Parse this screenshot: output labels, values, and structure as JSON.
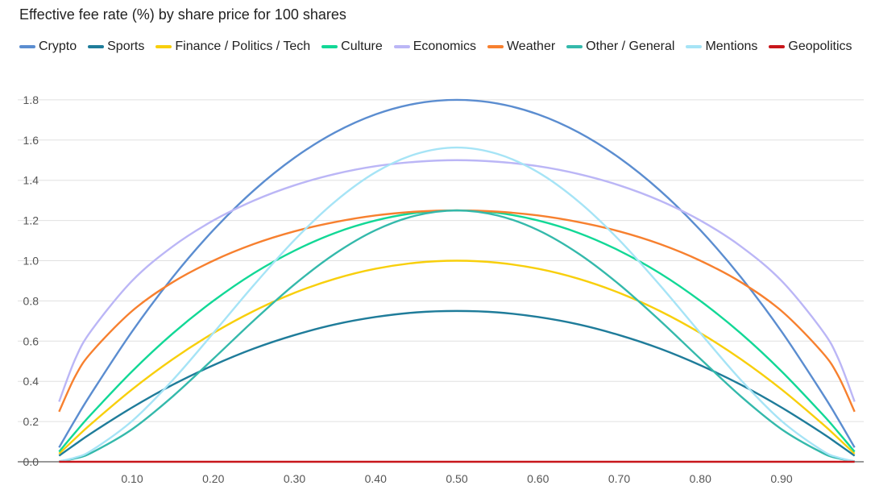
{
  "chart_data": {
    "type": "line",
    "title": "Effective fee rate (%) by share price for 100 shares",
    "xlabel": "",
    "ylabel": "",
    "xlim": [
      0.01,
      0.99
    ],
    "ylim": [
      0,
      1.8
    ],
    "grid": true,
    "legend_placement": "top",
    "x_ticks": [
      "0.10",
      "0.20",
      "0.30",
      "0.40",
      "0.50",
      "0.60",
      "0.70",
      "0.80",
      "0.90"
    ],
    "y_ticks": [
      "0.0",
      "0.2",
      "0.4",
      "0.6",
      "0.8",
      "1.0",
      "1.2",
      "1.4",
      "1.6",
      "1.8"
    ],
    "x": [
      0.01,
      0.03,
      0.05,
      0.1,
      0.15,
      0.2,
      0.25,
      0.3,
      0.35,
      0.4,
      0.45,
      0.5,
      0.55,
      0.6,
      0.65,
      0.7,
      0.75,
      0.8,
      0.85,
      0.9,
      0.95,
      0.97,
      0.99
    ],
    "series": [
      {
        "name": "Crypto",
        "color": "#5b8dd0",
        "values": [
          0.071,
          0.21,
          0.342,
          0.648,
          0.918,
          1.152,
          1.35,
          1.512,
          1.638,
          1.728,
          1.782,
          1.8,
          1.782,
          1.728,
          1.638,
          1.512,
          1.35,
          1.152,
          0.918,
          0.648,
          0.342,
          0.21,
          0.071
        ]
      },
      {
        "name": "Sports",
        "color": "#1f7c9a",
        "values": [
          0.03,
          0.087,
          0.143,
          0.27,
          0.383,
          0.48,
          0.563,
          0.63,
          0.683,
          0.72,
          0.743,
          0.75,
          0.743,
          0.72,
          0.683,
          0.63,
          0.563,
          0.48,
          0.383,
          0.27,
          0.143,
          0.087,
          0.03
        ]
      },
      {
        "name": "Finance / Politics / Tech",
        "color": "#f8cf0c",
        "values": [
          0.04,
          0.116,
          0.19,
          0.36,
          0.51,
          0.64,
          0.75,
          0.84,
          0.91,
          0.96,
          0.99,
          1.0,
          0.99,
          0.96,
          0.91,
          0.84,
          0.75,
          0.64,
          0.51,
          0.36,
          0.19,
          0.116,
          0.04
        ]
      },
      {
        "name": "Culture",
        "color": "#12d896",
        "values": [
          0.05,
          0.146,
          0.238,
          0.45,
          0.638,
          0.8,
          0.938,
          1.05,
          1.138,
          1.2,
          1.238,
          1.25,
          1.238,
          1.2,
          1.138,
          1.05,
          0.938,
          0.8,
          0.638,
          0.45,
          0.238,
          0.146,
          0.05
        ]
      },
      {
        "name": "Economics",
        "color": "#bbb6f6",
        "values": [
          0.299,
          0.512,
          0.654,
          0.9,
          1.071,
          1.2,
          1.299,
          1.375,
          1.431,
          1.47,
          1.492,
          1.5,
          1.492,
          1.47,
          1.431,
          1.375,
          1.299,
          1.2,
          1.071,
          0.9,
          0.654,
          0.512,
          0.299
        ]
      },
      {
        "name": "Weather",
        "color": "#f7802f",
        "values": [
          0.249,
          0.426,
          0.545,
          0.75,
          0.893,
          1.0,
          1.083,
          1.146,
          1.192,
          1.225,
          1.244,
          1.25,
          1.244,
          1.225,
          1.192,
          1.146,
          1.083,
          1.0,
          0.893,
          0.75,
          0.545,
          0.426,
          0.249
        ]
      },
      {
        "name": "Other / General",
        "color": "#34b9ab",
        "values": [
          0.002,
          0.017,
          0.045,
          0.162,
          0.325,
          0.512,
          0.703,
          0.882,
          1.035,
          1.152,
          1.225,
          1.25,
          1.225,
          1.152,
          1.035,
          0.882,
          0.703,
          0.512,
          0.325,
          0.162,
          0.045,
          0.017,
          0.002
        ]
      },
      {
        "name": "Mentions",
        "color": "#a6e4f6",
        "values": [
          0.002,
          0.021,
          0.056,
          0.203,
          0.406,
          0.64,
          0.879,
          1.103,
          1.294,
          1.44,
          1.531,
          1.563,
          1.531,
          1.44,
          1.294,
          1.103,
          0.879,
          0.64,
          0.406,
          0.203,
          0.056,
          0.021,
          0.002
        ]
      },
      {
        "name": "Geopolitics",
        "color": "#c8161b",
        "values": [
          0,
          0,
          0,
          0,
          0,
          0,
          0,
          0,
          0,
          0,
          0,
          0,
          0,
          0,
          0,
          0,
          0,
          0,
          0,
          0,
          0,
          0,
          0
        ]
      }
    ]
  }
}
